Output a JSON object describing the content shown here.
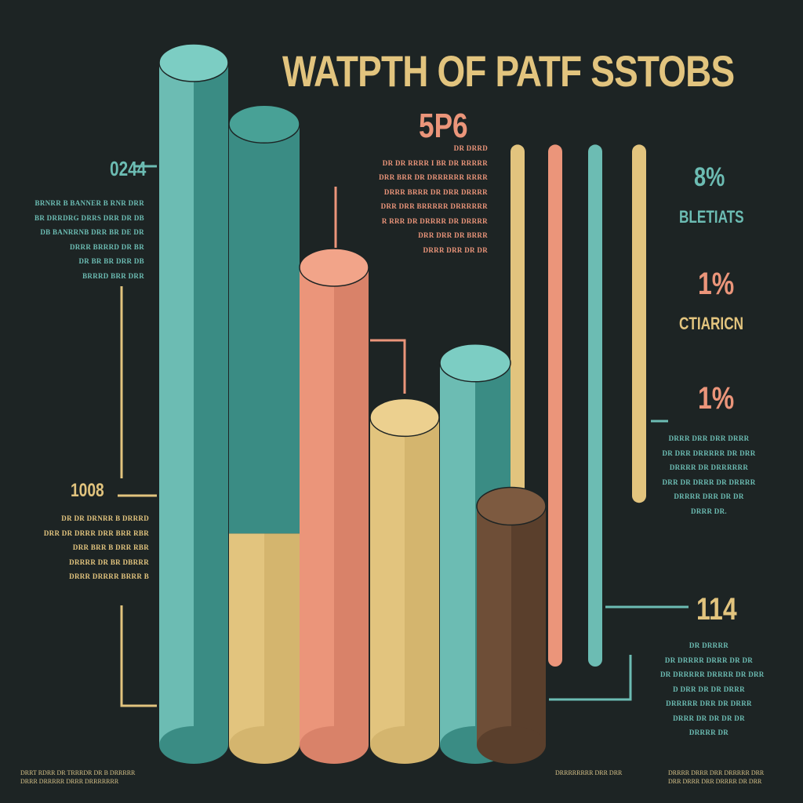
{
  "colors": {
    "background": "#1d2424",
    "teal": "#6cbcb3",
    "teal_dark": "#3a8c84",
    "salmon": "#eb957a",
    "salmon_dark": "#d98269",
    "tan": "#e2c47e",
    "tan_dark": "#d4b56e",
    "brown": "#6e4e37",
    "brown_dark": "#5a3f2c"
  },
  "chart_data": {
    "type": "bar",
    "title": "WATPTH OF PATF SSTOBS",
    "xlabel": "",
    "ylabel": "",
    "columns": [
      {
        "color": "teal",
        "segments": [
          {
            "color": "teal",
            "value": 100
          }
        ]
      },
      {
        "color": "teal_dark",
        "segments": [
          {
            "color": "tan",
            "value": 31
          },
          {
            "color": "teal_dark",
            "value": 60
          }
        ]
      },
      {
        "color": "salmon",
        "segments": [
          {
            "color": "salmon",
            "value": 70
          }
        ]
      },
      {
        "color": "tan",
        "segments": [
          {
            "color": "tan",
            "value": 48
          }
        ]
      },
      {
        "color": "teal",
        "segments": [
          {
            "color": "teal",
            "value": 56
          }
        ]
      },
      {
        "color": "brown",
        "segments": [
          {
            "color": "brown",
            "value": 35
          }
        ]
      }
    ],
    "bars_thin": [
      {
        "color": "tan",
        "top_value": 88,
        "bottom_value": 12
      },
      {
        "color": "salmon",
        "top_value": 88,
        "bottom_value": 0
      },
      {
        "color": "teal",
        "top_value": 88,
        "bottom_value": 0
      },
      {
        "color": "tan",
        "top_value": 88,
        "bottom_value": 24
      }
    ],
    "annotations": [
      {
        "id": "a1",
        "value": "0244",
        "color": "teal"
      },
      {
        "id": "a2",
        "value": "1008",
        "color": "tan"
      },
      {
        "id": "a3",
        "value": "5P6",
        "color": "salmon"
      },
      {
        "id": "a4",
        "value": "8%",
        "label": "BLETIATS",
        "color": "teal"
      },
      {
        "id": "a5",
        "value": "1%",
        "label": "CTIARICN",
        "color": "salmon"
      },
      {
        "id": "a6",
        "value": "1%",
        "color": "salmon"
      },
      {
        "id": "a7",
        "value": "114",
        "color": "tan"
      }
    ]
  },
  "blurbs": {
    "b1": [
      "BRNRR B BANNER B RNR DRR",
      "BR DRRDRG DRRS DRR DR DB",
      "DB BANRRNB DRR BR DE DR",
      "DRRR BRRRD DR BR",
      "DR BR BR DRR DB",
      "BRRRD BRR DRR"
    ],
    "b2": [
      "DR DR DRNRR B DRRRD",
      "DRR DR DRRR DRR BRR RBR",
      "DRR BRR B DRR RBR",
      "DRRRR DR BR DBRRR",
      "DRRR DRRRR BRRR B"
    ],
    "b3": [
      "DR DRRD",
      "DR DR RRRR I BR DR RRRRR",
      "DRR BRR DR DRRRRRR RRRR",
      "DRRR BRRR DR DRR DRRRR",
      "DRR DRR BRRRRR DRRRRRR",
      "R RRR DR DRRRR DR DRRRR",
      "DRR DRR DR BRRR",
      "DRRR DRR DR DR"
    ],
    "b4": [
      "DRRR DRR DRR DRRR",
      "DR DRR DRRRRR DR DRR",
      "DRRRR DR DRRRRRR",
      "DRR DR DRRR DR DRRRR",
      "DRRRR DRR DR DR",
      "DRRR DR."
    ],
    "b5": [
      "DR DRRRR",
      "DR DRRRR DRRR DR DR",
      "DR DRRRRR DRRRR DR DRR",
      "D DRR DR DR DRRR",
      "DRRRRR DRR DR DRRR",
      "DRRR DR DR DR DR",
      "DRRRR DR"
    ],
    "foot_left": [
      "DRRT RDRR DR TRRRDR DR B DRRRRR",
      "DRRR DRRRRR DRRR DRRRRRRR"
    ],
    "foot_mid": [
      "DRRRRRRRR DRR DRR"
    ],
    "foot_right": [
      "DRRRR DRRR DRR DRRRRR DRR",
      "DRR DRRR DRR DRRRR DR DRR"
    ]
  }
}
